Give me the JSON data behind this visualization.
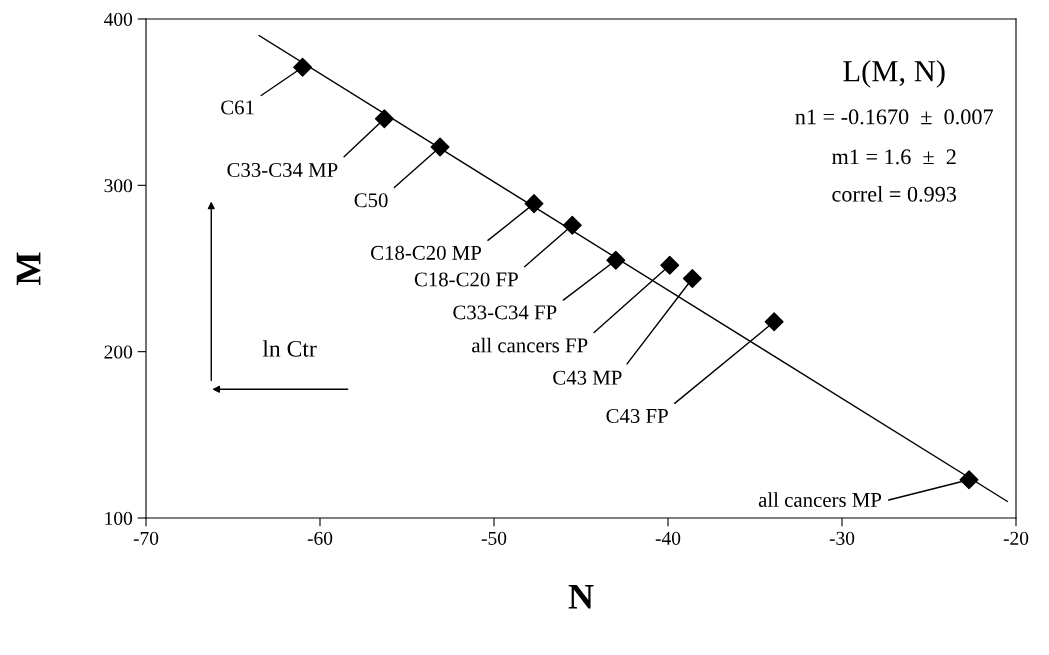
{
  "chart_data": {
    "type": "scatter",
    "xlabel": "N",
    "ylabel": "M",
    "xlim": [
      -70,
      -20
    ],
    "xticks": [
      -70,
      -60,
      -50,
      -40,
      -30,
      -20
    ],
    "ylim": [
      100,
      400
    ],
    "yticks": [
      100,
      200,
      300,
      400
    ],
    "grid": false,
    "legend": false,
    "marker": "diamond",
    "series": [
      {
        "type": "scatter",
        "color": "#000000",
        "x": [
          -61.0,
          -56.3,
          -53.1,
          -47.7,
          -45.5,
          -43.0,
          -39.9,
          -38.6,
          -33.9,
          -22.7
        ],
        "values": [
          371,
          340,
          323,
          289,
          276,
          255,
          252,
          244,
          218,
          123
        ]
      },
      {
        "type": "line",
        "color": "#000000",
        "marker": "none",
        "x": [
          -63.5,
          -20.5
        ],
        "values": [
          390,
          110
        ]
      }
    ],
    "annotations": [
      {
        "text": "C61",
        "x": -61.0,
        "y": 371
      },
      {
        "text": "C33-C34 MP",
        "x": -56.3,
        "y": 340
      },
      {
        "text": "C50",
        "x": -53.1,
        "y": 323
      },
      {
        "text": "C18-C20 MP",
        "x": -47.7,
        "y": 289
      },
      {
        "text": "C18-C20 FP",
        "x": -45.5,
        "y": 276
      },
      {
        "text": "C33-C34 FP",
        "x": -43.0,
        "y": 255
      },
      {
        "text": "all cancers FP",
        "x": -39.9,
        "y": 252
      },
      {
        "text": "C43 MP",
        "x": -38.6,
        "y": 244
      },
      {
        "text": "C43 FP",
        "x": -33.9,
        "y": 218
      },
      {
        "text": "all cancers MP",
        "x": -22.7,
        "y": 123
      },
      "L(M, N)",
      "n1 = -0.1670  ±  0.007",
      "m1 = 1.6  ±  2",
      "correl = 0.993",
      "ln Ctr"
    ]
  }
}
